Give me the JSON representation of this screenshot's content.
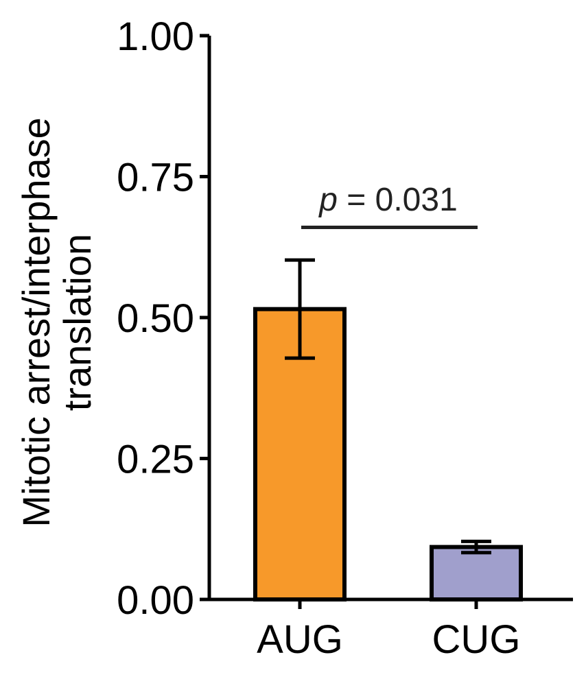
{
  "chart_data": {
    "type": "bar",
    "categories": [
      "AUG",
      "CUG"
    ],
    "values": [
      0.515,
      0.093
    ],
    "error": [
      0.087,
      0.01
    ],
    "colors": [
      "#F7992A",
      "#A09FCC"
    ],
    "ylabel_lines": [
      "Mitotic arrest/interphase",
      "translation"
    ],
    "ylim": [
      0,
      1
    ],
    "yticks": [
      "0.00",
      "0.25",
      "0.50",
      "0.75",
      "1.00"
    ],
    "annotation": {
      "p_symbol": "p",
      "p_text": " = 0.031",
      "bracket_y": 0.66
    },
    "grid": false,
    "legend": "none"
  }
}
